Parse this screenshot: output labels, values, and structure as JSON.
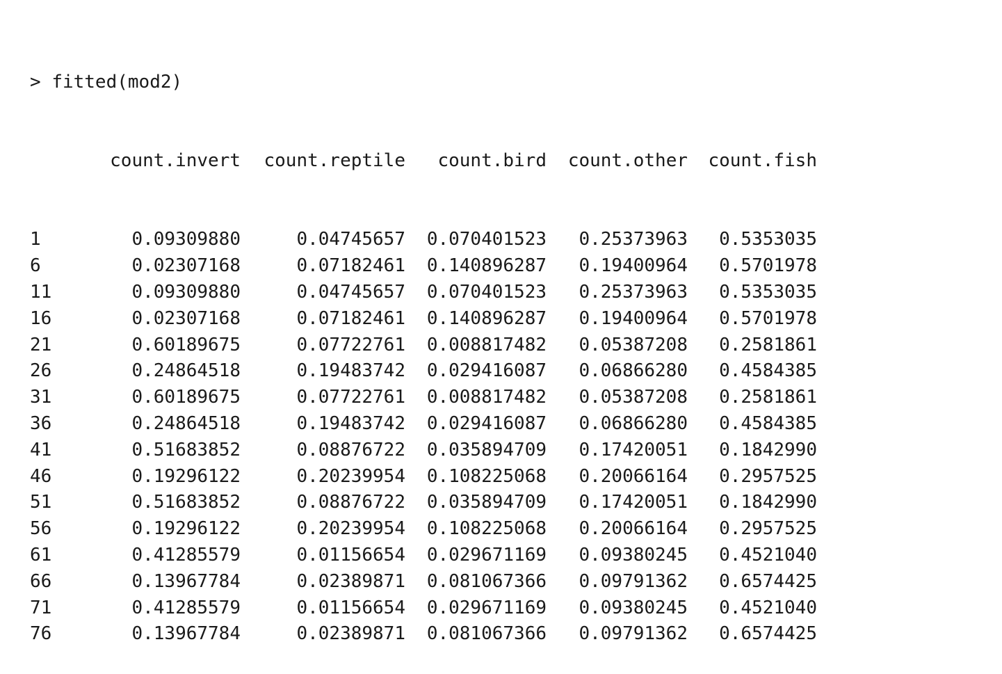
{
  "console": {
    "prompt": "> ",
    "command": "fitted(mod2)"
  },
  "table": {
    "columns": [
      "count.invert",
      "count.reptile",
      "count.bird",
      "count.other",
      "count.fish"
    ],
    "rows": [
      {
        "name": "1",
        "values": [
          "0.09309880",
          "0.04745657",
          "0.070401523",
          "0.25373963",
          "0.5353035"
        ]
      },
      {
        "name": "6",
        "values": [
          "0.02307168",
          "0.07182461",
          "0.140896287",
          "0.19400964",
          "0.5701978"
        ]
      },
      {
        "name": "11",
        "values": [
          "0.09309880",
          "0.04745657",
          "0.070401523",
          "0.25373963",
          "0.5353035"
        ]
      },
      {
        "name": "16",
        "values": [
          "0.02307168",
          "0.07182461",
          "0.140896287",
          "0.19400964",
          "0.5701978"
        ]
      },
      {
        "name": "21",
        "values": [
          "0.60189675",
          "0.07722761",
          "0.008817482",
          "0.05387208",
          "0.2581861"
        ]
      },
      {
        "name": "26",
        "values": [
          "0.24864518",
          "0.19483742",
          "0.029416087",
          "0.06866280",
          "0.4584385"
        ]
      },
      {
        "name": "31",
        "values": [
          "0.60189675",
          "0.07722761",
          "0.008817482",
          "0.05387208",
          "0.2581861"
        ]
      },
      {
        "name": "36",
        "values": [
          "0.24864518",
          "0.19483742",
          "0.029416087",
          "0.06866280",
          "0.4584385"
        ]
      },
      {
        "name": "41",
        "values": [
          "0.51683852",
          "0.08876722",
          "0.035894709",
          "0.17420051",
          "0.1842990"
        ]
      },
      {
        "name": "46",
        "values": [
          "0.19296122",
          "0.20239954",
          "0.108225068",
          "0.20066164",
          "0.2957525"
        ]
      },
      {
        "name": "51",
        "values": [
          "0.51683852",
          "0.08876722",
          "0.035894709",
          "0.17420051",
          "0.1842990"
        ]
      },
      {
        "name": "56",
        "values": [
          "0.19296122",
          "0.20239954",
          "0.108225068",
          "0.20066164",
          "0.2957525"
        ]
      },
      {
        "name": "61",
        "values": [
          "0.41285579",
          "0.01156654",
          "0.029671169",
          "0.09380245",
          "0.4521040"
        ]
      },
      {
        "name": "66",
        "values": [
          "0.13967784",
          "0.02389871",
          "0.081067366",
          "0.09791362",
          "0.6574425"
        ]
      },
      {
        "name": "71",
        "values": [
          "0.41285579",
          "0.01156654",
          "0.029671169",
          "0.09380245",
          "0.4521040"
        ]
      },
      {
        "name": "76",
        "values": [
          "0.13967784",
          "0.02389871",
          "0.081067366",
          "0.09791362",
          "0.6574425"
        ]
      }
    ]
  }
}
